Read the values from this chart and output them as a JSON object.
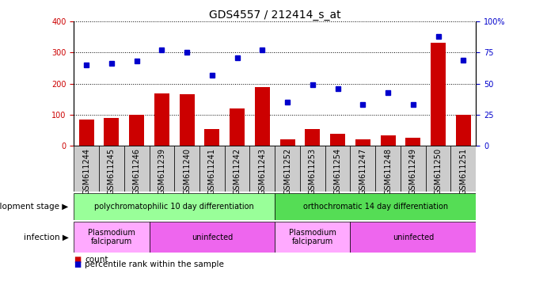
{
  "title": "GDS4557 / 212414_s_at",
  "samples": [
    "GSM611244",
    "GSM611245",
    "GSM611246",
    "GSM611239",
    "GSM611240",
    "GSM611241",
    "GSM611242",
    "GSM611243",
    "GSM611252",
    "GSM611253",
    "GSM611254",
    "GSM611247",
    "GSM611248",
    "GSM611249",
    "GSM611250",
    "GSM611251"
  ],
  "count_values": [
    85,
    90,
    100,
    168,
    165,
    53,
    120,
    190,
    22,
    55,
    40,
    20,
    35,
    25,
    330,
    100
  ],
  "percentile_values": [
    65,
    66,
    68,
    77,
    75,
    57,
    71,
    77,
    35,
    49,
    46,
    33,
    43,
    33,
    88,
    69
  ],
  "ylim_left": [
    0,
    400
  ],
  "ylim_right": [
    0,
    100
  ],
  "yticks_left": [
    0,
    100,
    200,
    300,
    400
  ],
  "yticks_right": [
    0,
    25,
    50,
    75,
    100
  ],
  "bar_color": "#cc0000",
  "dot_color": "#0000cc",
  "title_fontsize": 10,
  "tick_fontsize": 7,
  "label_fontsize": 7.5,
  "dev_stage_groups": [
    {
      "label": "polychromatophilic 10 day differentiation",
      "start": 0,
      "end": 8,
      "color": "#99ff99"
    },
    {
      "label": "orthochromatic 14 day differentiation",
      "start": 8,
      "end": 16,
      "color": "#55dd55"
    }
  ],
  "infection_groups": [
    {
      "label": "Plasmodium\nfalciparum",
      "start": 0,
      "end": 3,
      "color": "#ffaaff"
    },
    {
      "label": "uninfected",
      "start": 3,
      "end": 8,
      "color": "#ee66ee"
    },
    {
      "label": "Plasmodium\nfalciparum",
      "start": 8,
      "end": 11,
      "color": "#ffaaff"
    },
    {
      "label": "uninfected",
      "start": 11,
      "end": 16,
      "color": "#ee66ee"
    }
  ],
  "bg_color": "#ffffff",
  "plot_bg_color": "#ffffff",
  "xtick_bg_color": "#cccccc",
  "ylabel_left_color": "#cc0000",
  "ylabel_right_color": "#0000cc"
}
